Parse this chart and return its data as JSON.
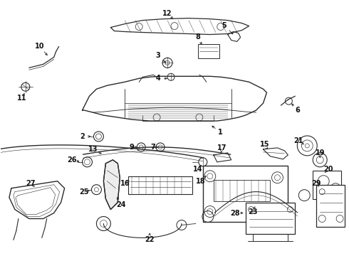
{
  "bg_color": "#ffffff",
  "line_color": "#2a2a2a",
  "fig_width": 4.9,
  "fig_height": 3.6,
  "dpi": 100,
  "label_fontsize": 7.0,
  "label_color": "#111111"
}
